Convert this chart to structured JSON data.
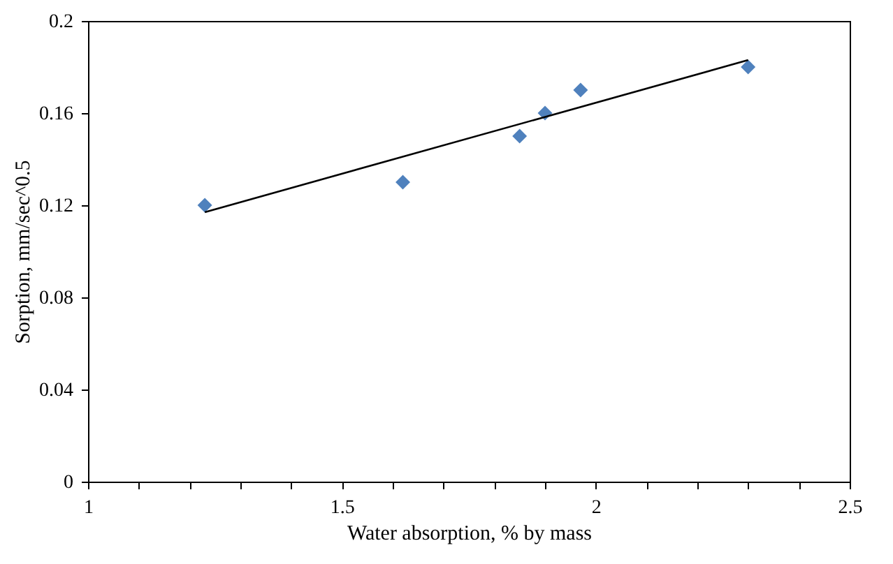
{
  "chart_data": {
    "type": "scatter",
    "xlabel": "Water absorption, % by mass",
    "ylabel": "Sorption, mm/sec^0.5",
    "x": [
      1.23,
      1.62,
      1.85,
      1.9,
      1.97,
      2.3
    ],
    "series": [
      {
        "color": "#4f81bd",
        "marker": "diamond",
        "values": [
          0.12,
          0.13,
          0.15,
          0.16,
          0.17,
          0.18
        ]
      },
      {
        "type": "line",
        "color": "#000000",
        "marker": "none",
        "line_style": "solid",
        "x": [
          1.23,
          2.3
        ],
        "values": [
          0.117,
          0.183
        ]
      }
    ],
    "xlim": [
      1,
      2.5
    ],
    "ylim": [
      0,
      0.2
    ],
    "xticks": [
      1,
      {
        "value": 1.1,
        "label": null
      },
      {
        "value": 1.2,
        "label": null
      },
      {
        "value": 1.3,
        "label": null
      },
      {
        "value": 1.4,
        "label": null
      },
      1.5,
      {
        "value": 1.6,
        "label": null
      },
      {
        "value": 1.7,
        "label": null
      },
      {
        "value": 1.8,
        "label": null
      },
      {
        "value": 1.9,
        "label": null
      },
      2,
      {
        "value": 2.1,
        "label": null
      },
      {
        "value": 2.2,
        "label": null
      },
      {
        "value": 2.3,
        "label": null
      },
      {
        "value": 2.4,
        "label": null
      },
      2.5
    ],
    "yticks": [
      0,
      0.04,
      0.08,
      0.12,
      0.16,
      0.2
    ],
    "grid": false
  }
}
